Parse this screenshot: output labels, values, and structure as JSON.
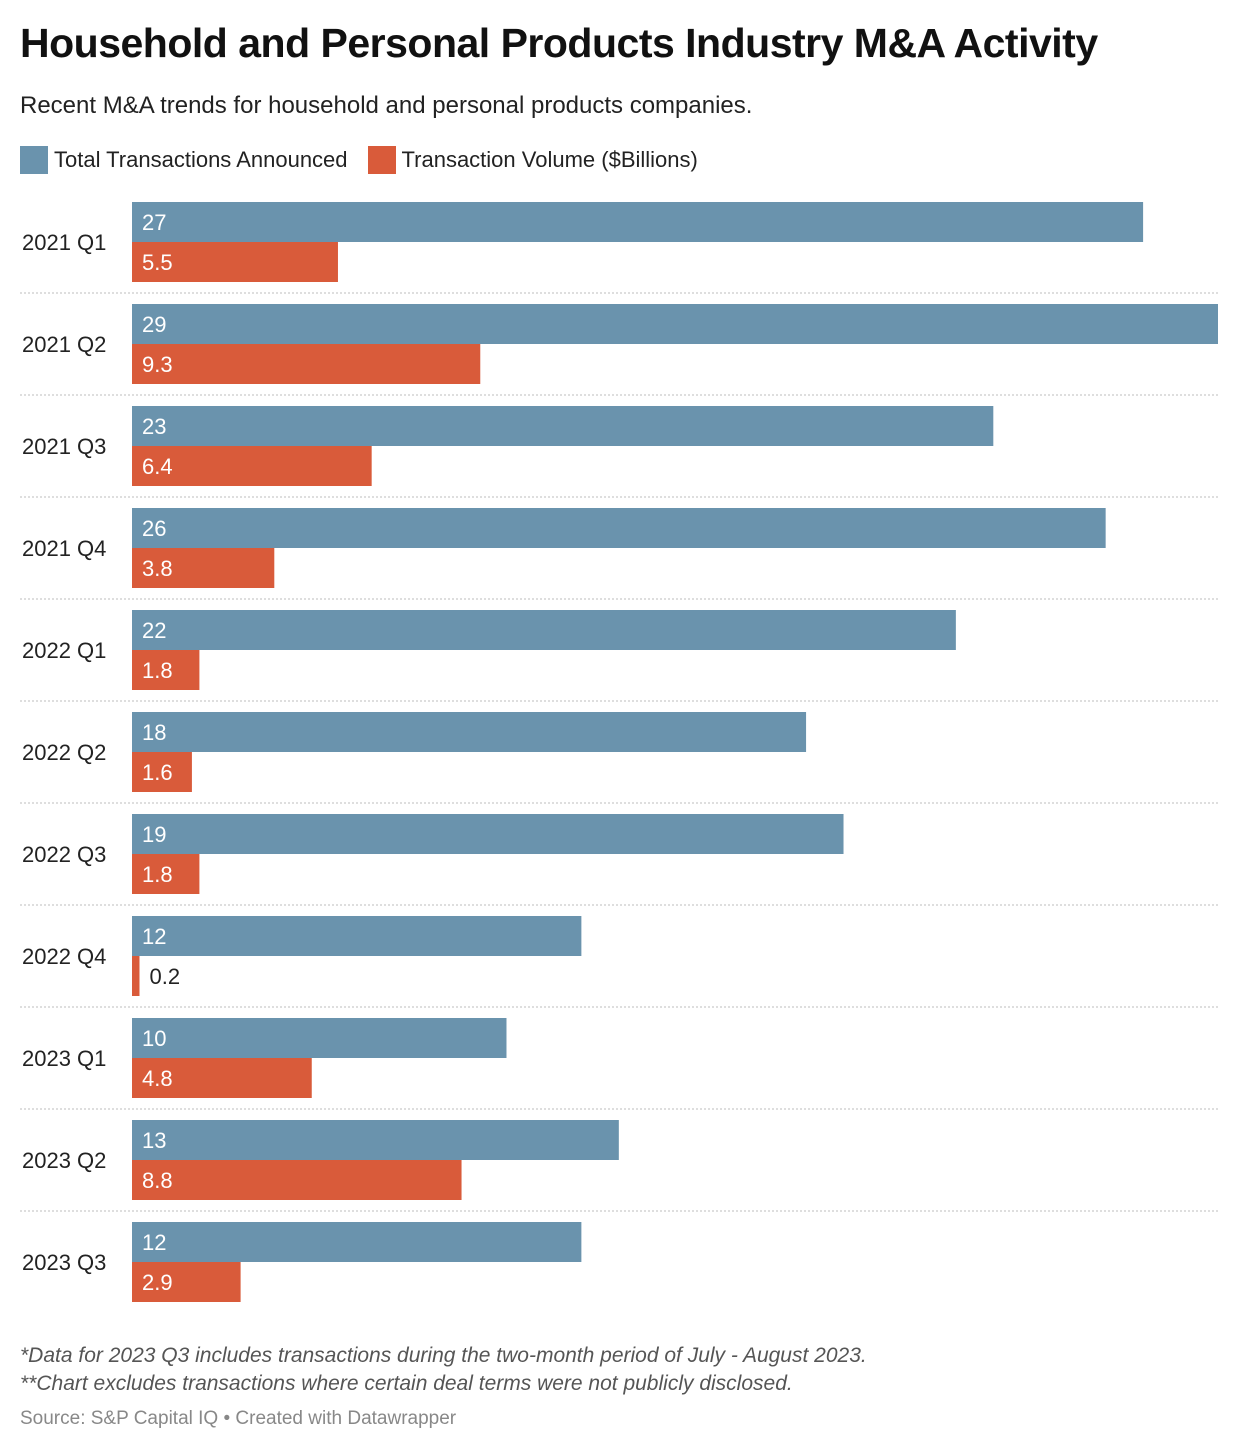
{
  "title": "Household and Personal Products Industry M&A Activity",
  "subtitle": "Recent M&A trends for household and personal products companies.",
  "legend": [
    {
      "label": "Total Transactions Announced",
      "color": "#6a93ad"
    },
    {
      "label": "Transaction Volume ($Billions)",
      "color": "#d95b3a"
    }
  ],
  "chart_data": {
    "type": "bar",
    "orientation": "horizontal",
    "categories": [
      "2021 Q1",
      "2021 Q2",
      "2021 Q3",
      "2021 Q4",
      "2022 Q1",
      "2022 Q2",
      "2022 Q3",
      "2022 Q4",
      "2023 Q1",
      "2023 Q2",
      "2023 Q3"
    ],
    "series": [
      {
        "name": "Total Transactions Announced",
        "color": "#6a93ad",
        "values": [
          27,
          29,
          23,
          26,
          22,
          18,
          19,
          12,
          10,
          13,
          12
        ]
      },
      {
        "name": "Transaction Volume ($Billions)",
        "color": "#d95b3a",
        "values": [
          5.5,
          9.3,
          6.4,
          3.8,
          1.8,
          1.6,
          1.8,
          0.2,
          4.8,
          8.8,
          2.9
        ]
      }
    ],
    "labels": [
      [
        "27",
        "29",
        "23",
        "26",
        "22",
        "18",
        "19",
        "12",
        "10",
        "13",
        "12"
      ],
      [
        "5.5",
        "9.3",
        "6.4",
        "3.8",
        "1.8",
        "1.6",
        "1.8",
        "0.2",
        "4.8",
        "8.8",
        "2.9"
      ]
    ],
    "xlim": [
      0,
      29
    ],
    "grid": false,
    "legend_position": "top-left"
  },
  "notes": [
    "*Data for 2023 Q3 includes transactions during the two-month period of July - August 2023.",
    "**Chart excludes transactions where certain deal terms were not publicly disclosed."
  ],
  "source": "Source: S&P Capital IQ • Created with Datawrapper"
}
